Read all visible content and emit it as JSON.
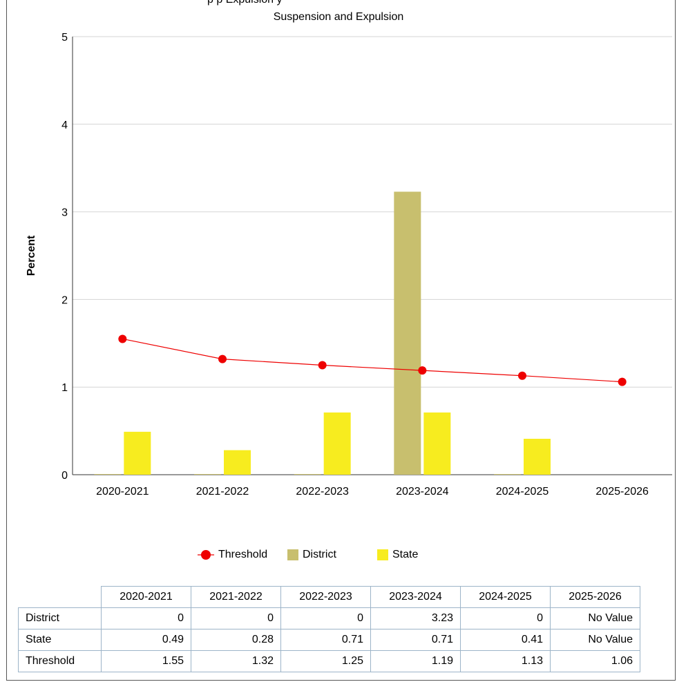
{
  "top_clipped_text": "p    p      Expulsion    y",
  "chart_data": {
    "type": "bar",
    "title": "Suspension and Expulsion",
    "ylabel": "Percent",
    "xlabel": "",
    "ylim": [
      0,
      5
    ],
    "yticks": [
      0,
      1,
      2,
      3,
      4,
      5
    ],
    "grid": true,
    "legend_position": "bottom",
    "categories": [
      "2020-2021",
      "2021-2022",
      "2022-2023",
      "2023-2024",
      "2024-2025",
      "2025-2026"
    ],
    "series": [
      {
        "name": "District",
        "kind": "bar",
        "color": "#c8bf6e",
        "values": [
          0,
          0,
          0,
          3.23,
          0,
          null
        ]
      },
      {
        "name": "State",
        "kind": "bar",
        "color": "#f7ec1f",
        "values": [
          0.49,
          0.28,
          0.71,
          0.71,
          0.41,
          null
        ]
      },
      {
        "name": "Threshold",
        "kind": "line",
        "color": "#ee0000",
        "values": [
          1.55,
          1.32,
          1.25,
          1.19,
          1.13,
          1.06
        ]
      }
    ]
  },
  "legend": [
    {
      "label": "Threshold",
      "icon": "line-marker",
      "color": "#ee0000"
    },
    {
      "label": "District",
      "icon": "square",
      "color": "#c8bf6e"
    },
    {
      "label": "State",
      "icon": "square",
      "color": "#f7ec1f"
    }
  ],
  "table": {
    "columns": [
      "2020-2021",
      "2021-2022",
      "2022-2023",
      "2023-2024",
      "2024-2025",
      "2025-2026"
    ],
    "rows": [
      {
        "label": "District",
        "cells": [
          "0",
          "0",
          "0",
          "3.23",
          "0",
          "No Value"
        ]
      },
      {
        "label": "State",
        "cells": [
          "0.49",
          "0.28",
          "0.71",
          "0.71",
          "0.41",
          "No Value"
        ]
      },
      {
        "label": "Threshold",
        "cells": [
          "1.55",
          "1.32",
          "1.25",
          "1.19",
          "1.13",
          "1.06"
        ]
      }
    ]
  }
}
